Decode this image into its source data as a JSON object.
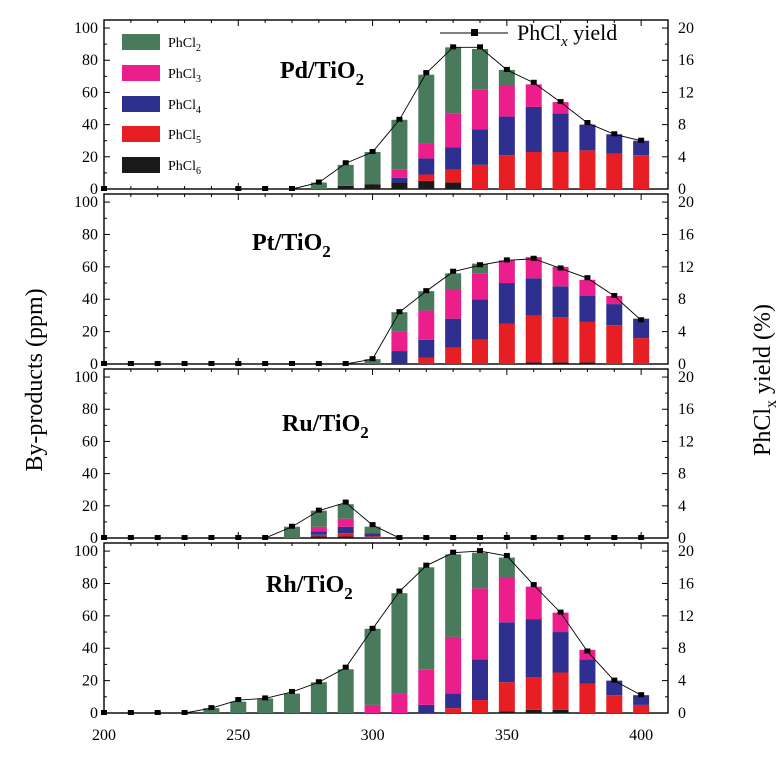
{
  "chart_data": {
    "type": "bar",
    "x": [
      200,
      210,
      220,
      230,
      240,
      250,
      260,
      270,
      280,
      290,
      300,
      310,
      320,
      330,
      340,
      350,
      360,
      370,
      380,
      390,
      400
    ],
    "xlim": [
      200,
      410
    ],
    "xticks": [
      "200",
      "250",
      "300",
      "350",
      "400"
    ],
    "ylim_left": [
      0,
      105
    ],
    "ylim_right": [
      0,
      21
    ],
    "yticks_left": [
      "0",
      "20",
      "40",
      "60",
      "80",
      "100"
    ],
    "yticks_right": [
      "0",
      "4",
      "8",
      "12",
      "16",
      "20"
    ],
    "ylabel_left": "By-products (ppm)",
    "ylabel_right": "PhCl",
    "ylabel_right_sub": "x",
    "ylabel_right_suffix": " yield (%)",
    "legend": {
      "line_label": "PhCl",
      "line_sub": "x",
      "line_suffix": " yield",
      "series": [
        {
          "name": "PhCl",
          "sub": "2",
          "color": "#4a7a5c"
        },
        {
          "name": "PhCl",
          "sub": "3",
          "color": "#ec1e8c"
        },
        {
          "name": "PhCl",
          "sub": "4",
          "color": "#2e2f8e"
        },
        {
          "name": "PhCl",
          "sub": "5",
          "color": "#e81e25"
        },
        {
          "name": "PhCl",
          "sub": "6",
          "color": "#1a1a1a"
        }
      ]
    },
    "panels": [
      {
        "title": "Pd/TiO",
        "title_sub": "2",
        "x": [
          200,
          250,
          260,
          270,
          280,
          290,
          300,
          310,
          320,
          330,
          340,
          350,
          360,
          370,
          380,
          390,
          400
        ],
        "stacks": [
          [
            0,
            0,
            0,
            0,
            0
          ],
          [
            0,
            0,
            0,
            0,
            0
          ],
          [
            0,
            0,
            0,
            0,
            0
          ],
          [
            0,
            0,
            0,
            0,
            0
          ],
          [
            4,
            0,
            0,
            0,
            0
          ],
          [
            13,
            0,
            0,
            0,
            2
          ],
          [
            20,
            0,
            0,
            0,
            3
          ],
          [
            31,
            5,
            3,
            0,
            4
          ],
          [
            43,
            9,
            10,
            4,
            5
          ],
          [
            41,
            21,
            14,
            8,
            4
          ],
          [
            25,
            25,
            22,
            15,
            0
          ],
          [
            10,
            19,
            24,
            21,
            0
          ],
          [
            0,
            14,
            28,
            23,
            0
          ],
          [
            0,
            7,
            24,
            23,
            0
          ],
          [
            0,
            0,
            16,
            24,
            0
          ],
          [
            0,
            0,
            12,
            22,
            0
          ],
          [
            0,
            0,
            9,
            21,
            0
          ]
        ],
        "yield": [
          0,
          0,
          0,
          0,
          0.8,
          3.2,
          4.6,
          8.6,
          14.4,
          17.6,
          17.6,
          14.8,
          13.2,
          10.8,
          8.2,
          6.8,
          6.0
        ]
      },
      {
        "title": "Pt/TiO",
        "title_sub": "2",
        "x": [
          200,
          210,
          220,
          230,
          240,
          250,
          260,
          270,
          280,
          290,
          300,
          310,
          320,
          330,
          340,
          350,
          360,
          370,
          380,
          390,
          400
        ],
        "stacks": [
          [
            0,
            0,
            0,
            0,
            0
          ],
          [
            0,
            0,
            0,
            0,
            0
          ],
          [
            0,
            0,
            0,
            0,
            0
          ],
          [
            0,
            0,
            0,
            0,
            0
          ],
          [
            0,
            0,
            0,
            0,
            0
          ],
          [
            0,
            0,
            0,
            0,
            0
          ],
          [
            0,
            0,
            0,
            0,
            0
          ],
          [
            0,
            0,
            0,
            0,
            0
          ],
          [
            0,
            0,
            0,
            0,
            0
          ],
          [
            0,
            0,
            0,
            0,
            0
          ],
          [
            3,
            0,
            0,
            0,
            0
          ],
          [
            12,
            12,
            8,
            0,
            0
          ],
          [
            12,
            18,
            11,
            4,
            0
          ],
          [
            10,
            18,
            18,
            10,
            0
          ],
          [
            6,
            16,
            25,
            15,
            0
          ],
          [
            0,
            14,
            25,
            25,
            0
          ],
          [
            0,
            13,
            23,
            29,
            1
          ],
          [
            0,
            12,
            19,
            28,
            1
          ],
          [
            0,
            10,
            16,
            25,
            1
          ],
          [
            0,
            5,
            13,
            24,
            0
          ],
          [
            0,
            0,
            12,
            16,
            0
          ]
        ],
        "yield": [
          0,
          0,
          0,
          0,
          0,
          0,
          0,
          0,
          0,
          0,
          0.6,
          6.4,
          9.0,
          11.4,
          12.2,
          12.8,
          13.0,
          11.8,
          10.6,
          8.4,
          5.4
        ]
      },
      {
        "title": "Ru/TiO",
        "title_sub": "2",
        "x": [
          200,
          210,
          220,
          230,
          240,
          250,
          260,
          270,
          280,
          290,
          300,
          310,
          320,
          330,
          340,
          350,
          360,
          370,
          380,
          390,
          400
        ],
        "stacks": [
          [
            0,
            0,
            0,
            0,
            0
          ],
          [
            0,
            0,
            0,
            0,
            0
          ],
          [
            0,
            0,
            0,
            0,
            0
          ],
          [
            0,
            0,
            0,
            0,
            0
          ],
          [
            0,
            0,
            0,
            0,
            0
          ],
          [
            0,
            0,
            0,
            0,
            0
          ],
          [
            0,
            0,
            0,
            0,
            0
          ],
          [
            7,
            0,
            0,
            0,
            0
          ],
          [
            10,
            3,
            2,
            1,
            1
          ],
          [
            9,
            5,
            4,
            2,
            1
          ],
          [
            4,
            0,
            2,
            1,
            0
          ],
          [
            0,
            0,
            0,
            0,
            0
          ],
          [
            0,
            0,
            0,
            0,
            0
          ],
          [
            0,
            0,
            0,
            0,
            0
          ],
          [
            0,
            0,
            0,
            0,
            0
          ],
          [
            0,
            0,
            0,
            0,
            0
          ],
          [
            0,
            0,
            0,
            0,
            0
          ],
          [
            0,
            0,
            0,
            0,
            0
          ],
          [
            0,
            0,
            0,
            0,
            0
          ],
          [
            0,
            0,
            0,
            0,
            0
          ],
          [
            0,
            0,
            0,
            0,
            0
          ]
        ],
        "yield": [
          0,
          0,
          0,
          0,
          0,
          0,
          0,
          1.4,
          3.4,
          4.4,
          1.6,
          0,
          0,
          0,
          0,
          0,
          0,
          0,
          0,
          0,
          0
        ]
      },
      {
        "title": "Rh/TiO",
        "title_sub": "2",
        "x": [
          200,
          210,
          220,
          230,
          240,
          250,
          260,
          270,
          280,
          290,
          300,
          310,
          320,
          330,
          340,
          350,
          360,
          370,
          380,
          390,
          400
        ],
        "stacks": [
          [
            0,
            0,
            0,
            0,
            0
          ],
          [
            0,
            0,
            0,
            0,
            0
          ],
          [
            0,
            0,
            0,
            0,
            0
          ],
          [
            0,
            0,
            0,
            0,
            0
          ],
          [
            3,
            0,
            0,
            0,
            0
          ],
          [
            7,
            0,
            0,
            0,
            0
          ],
          [
            9,
            0,
            0,
            0,
            0
          ],
          [
            12,
            0,
            0,
            0,
            0
          ],
          [
            19,
            0,
            0,
            0,
            0
          ],
          [
            27,
            0,
            0,
            0,
            0
          ],
          [
            47,
            5,
            0,
            0,
            0
          ],
          [
            62,
            12,
            0,
            0,
            0
          ],
          [
            63,
            22,
            5,
            0,
            0
          ],
          [
            51,
            35,
            9,
            3,
            0
          ],
          [
            22,
            44,
            25,
            8,
            0
          ],
          [
            12,
            28,
            37,
            18,
            1
          ],
          [
            0,
            20,
            36,
            20,
            2
          ],
          [
            0,
            12,
            25,
            23,
            2
          ],
          [
            0,
            6,
            15,
            18,
            0
          ],
          [
            0,
            0,
            9,
            11,
            0
          ],
          [
            0,
            0,
            6,
            5,
            0
          ]
        ],
        "yield": [
          0,
          0,
          0,
          0,
          0.6,
          1.6,
          1.8,
          2.6,
          3.8,
          5.6,
          10.4,
          15.0,
          18.2,
          19.8,
          20.0,
          19.4,
          15.8,
          12.4,
          7.6,
          4.0,
          2.2
        ]
      }
    ]
  }
}
